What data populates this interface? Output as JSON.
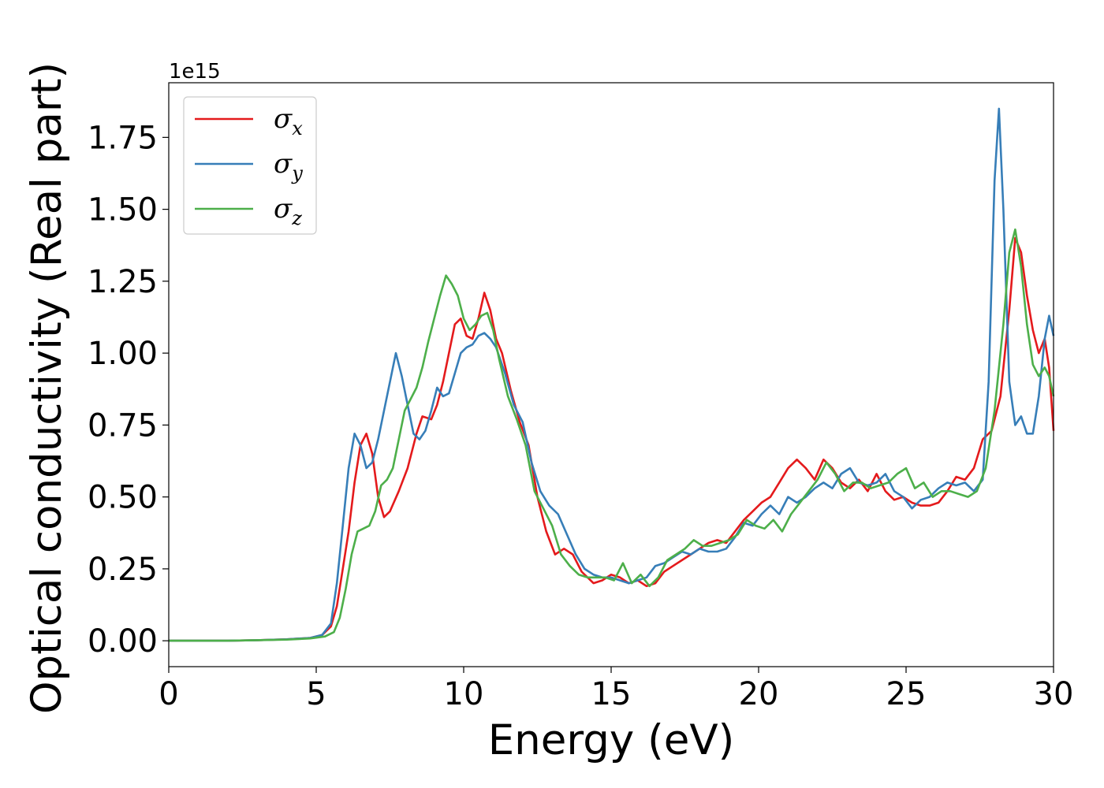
{
  "chart_data": {
    "type": "line",
    "xlabel": "Energy (eV)",
    "ylabel": "Optical conductivity (Real part)",
    "y_offset_label": "1e15",
    "xlim": [
      0,
      30
    ],
    "ylim": [
      -0.09,
      1.94
    ],
    "x_ticks": [
      0,
      5,
      10,
      15,
      20,
      25,
      30
    ],
    "x_tick_labels": [
      "0",
      "5",
      "10",
      "15",
      "20",
      "25",
      "30"
    ],
    "y_ticks": [
      0.0,
      0.25,
      0.5,
      0.75,
      1.0,
      1.25,
      1.5,
      1.75
    ],
    "y_tick_labels": [
      "0.00",
      "0.25",
      "0.50",
      "0.75",
      "1.00",
      "1.25",
      "1.50",
      "1.75"
    ],
    "grid": false,
    "legend_position": "top-left",
    "series": [
      {
        "name": "σ",
        "subscript": "x",
        "color": "#e41a1c",
        "points": [
          [
            0,
            0
          ],
          [
            2,
            0
          ],
          [
            3,
            0.002
          ],
          [
            4,
            0.005
          ],
          [
            4.8,
            0.01
          ],
          [
            5.2,
            0.02
          ],
          [
            5.5,
            0.05
          ],
          [
            5.7,
            0.12
          ],
          [
            5.9,
            0.25
          ],
          [
            6.1,
            0.38
          ],
          [
            6.3,
            0.55
          ],
          [
            6.5,
            0.68
          ],
          [
            6.7,
            0.72
          ],
          [
            6.9,
            0.65
          ],
          [
            7.1,
            0.5
          ],
          [
            7.3,
            0.43
          ],
          [
            7.5,
            0.45
          ],
          [
            7.8,
            0.52
          ],
          [
            8.1,
            0.6
          ],
          [
            8.4,
            0.72
          ],
          [
            8.6,
            0.78
          ],
          [
            8.9,
            0.77
          ],
          [
            9.1,
            0.82
          ],
          [
            9.3,
            0.9
          ],
          [
            9.5,
            1.0
          ],
          [
            9.7,
            1.1
          ],
          [
            9.9,
            1.12
          ],
          [
            10.1,
            1.06
          ],
          [
            10.3,
            1.05
          ],
          [
            10.5,
            1.12
          ],
          [
            10.7,
            1.21
          ],
          [
            10.9,
            1.15
          ],
          [
            11.1,
            1.05
          ],
          [
            11.3,
            1.0
          ],
          [
            11.6,
            0.87
          ],
          [
            11.9,
            0.76
          ],
          [
            12.2,
            0.68
          ],
          [
            12.5,
            0.5
          ],
          [
            12.8,
            0.38
          ],
          [
            13.1,
            0.3
          ],
          [
            13.4,
            0.32
          ],
          [
            13.7,
            0.3
          ],
          [
            14.0,
            0.24
          ],
          [
            14.4,
            0.2
          ],
          [
            14.7,
            0.21
          ],
          [
            15.0,
            0.23
          ],
          [
            15.3,
            0.22
          ],
          [
            15.6,
            0.2
          ],
          [
            15.9,
            0.21
          ],
          [
            16.2,
            0.19
          ],
          [
            16.5,
            0.2
          ],
          [
            16.8,
            0.24
          ],
          [
            17.1,
            0.26
          ],
          [
            17.4,
            0.28
          ],
          [
            17.7,
            0.3
          ],
          [
            18.0,
            0.32
          ],
          [
            18.3,
            0.34
          ],
          [
            18.6,
            0.35
          ],
          [
            18.9,
            0.34
          ],
          [
            19.2,
            0.38
          ],
          [
            19.5,
            0.42
          ],
          [
            19.8,
            0.45
          ],
          [
            20.1,
            0.48
          ],
          [
            20.4,
            0.5
          ],
          [
            20.7,
            0.55
          ],
          [
            21.0,
            0.6
          ],
          [
            21.3,
            0.63
          ],
          [
            21.6,
            0.6
          ],
          [
            21.9,
            0.56
          ],
          [
            22.2,
            0.63
          ],
          [
            22.5,
            0.6
          ],
          [
            22.8,
            0.55
          ],
          [
            23.1,
            0.53
          ],
          [
            23.4,
            0.56
          ],
          [
            23.7,
            0.52
          ],
          [
            24.0,
            0.58
          ],
          [
            24.3,
            0.52
          ],
          [
            24.6,
            0.49
          ],
          [
            24.9,
            0.5
          ],
          [
            25.2,
            0.48
          ],
          [
            25.5,
            0.47
          ],
          [
            25.8,
            0.47
          ],
          [
            26.1,
            0.48
          ],
          [
            26.4,
            0.52
          ],
          [
            26.7,
            0.57
          ],
          [
            27.0,
            0.56
          ],
          [
            27.3,
            0.6
          ],
          [
            27.6,
            0.7
          ],
          [
            27.9,
            0.73
          ],
          [
            28.2,
            0.85
          ],
          [
            28.5,
            1.15
          ],
          [
            28.7,
            1.4
          ],
          [
            28.9,
            1.35
          ],
          [
            29.1,
            1.2
          ],
          [
            29.3,
            1.08
          ],
          [
            29.5,
            1.0
          ],
          [
            29.7,
            1.05
          ],
          [
            29.85,
            0.95
          ],
          [
            30,
            0.73
          ]
        ]
      },
      {
        "name": "σ",
        "subscript": "y",
        "color": "#377eb8",
        "points": [
          [
            0,
            0
          ],
          [
            2,
            0
          ],
          [
            3,
            0.002
          ],
          [
            4,
            0.005
          ],
          [
            4.8,
            0.01
          ],
          [
            5.2,
            0.02
          ],
          [
            5.5,
            0.06
          ],
          [
            5.7,
            0.2
          ],
          [
            5.9,
            0.4
          ],
          [
            6.1,
            0.6
          ],
          [
            6.3,
            0.72
          ],
          [
            6.5,
            0.68
          ],
          [
            6.7,
            0.6
          ],
          [
            6.9,
            0.62
          ],
          [
            7.1,
            0.7
          ],
          [
            7.3,
            0.8
          ],
          [
            7.5,
            0.9
          ],
          [
            7.7,
            1.0
          ],
          [
            7.9,
            0.92
          ],
          [
            8.1,
            0.82
          ],
          [
            8.3,
            0.72
          ],
          [
            8.5,
            0.7
          ],
          [
            8.7,
            0.73
          ],
          [
            8.9,
            0.8
          ],
          [
            9.1,
            0.88
          ],
          [
            9.3,
            0.85
          ],
          [
            9.5,
            0.86
          ],
          [
            9.7,
            0.93
          ],
          [
            9.9,
            1.0
          ],
          [
            10.1,
            1.02
          ],
          [
            10.3,
            1.03
          ],
          [
            10.5,
            1.06
          ],
          [
            10.7,
            1.07
          ],
          [
            10.9,
            1.05
          ],
          [
            11.1,
            1.02
          ],
          [
            11.4,
            0.93
          ],
          [
            11.7,
            0.82
          ],
          [
            12.0,
            0.76
          ],
          [
            12.3,
            0.62
          ],
          [
            12.6,
            0.52
          ],
          [
            12.9,
            0.47
          ],
          [
            13.2,
            0.44
          ],
          [
            13.5,
            0.37
          ],
          [
            13.8,
            0.3
          ],
          [
            14.1,
            0.25
          ],
          [
            14.4,
            0.23
          ],
          [
            14.7,
            0.22
          ],
          [
            15.0,
            0.22
          ],
          [
            15.3,
            0.21
          ],
          [
            15.6,
            0.2
          ],
          [
            15.9,
            0.21
          ],
          [
            16.2,
            0.22
          ],
          [
            16.5,
            0.26
          ],
          [
            16.8,
            0.27
          ],
          [
            17.1,
            0.29
          ],
          [
            17.4,
            0.31
          ],
          [
            17.7,
            0.3
          ],
          [
            18.0,
            0.32
          ],
          [
            18.3,
            0.31
          ],
          [
            18.6,
            0.31
          ],
          [
            18.9,
            0.32
          ],
          [
            19.2,
            0.36
          ],
          [
            19.5,
            0.41
          ],
          [
            19.8,
            0.4
          ],
          [
            20.1,
            0.44
          ],
          [
            20.4,
            0.47
          ],
          [
            20.7,
            0.44
          ],
          [
            21.0,
            0.5
          ],
          [
            21.3,
            0.48
          ],
          [
            21.6,
            0.5
          ],
          [
            21.9,
            0.53
          ],
          [
            22.2,
            0.55
          ],
          [
            22.5,
            0.53
          ],
          [
            22.8,
            0.58
          ],
          [
            23.1,
            0.6
          ],
          [
            23.4,
            0.55
          ],
          [
            23.7,
            0.54
          ],
          [
            24.0,
            0.55
          ],
          [
            24.3,
            0.58
          ],
          [
            24.6,
            0.52
          ],
          [
            24.9,
            0.5
          ],
          [
            25.2,
            0.46
          ],
          [
            25.5,
            0.49
          ],
          [
            25.8,
            0.5
          ],
          [
            26.1,
            0.53
          ],
          [
            26.4,
            0.55
          ],
          [
            26.7,
            0.54
          ],
          [
            27.0,
            0.55
          ],
          [
            27.3,
            0.52
          ],
          [
            27.6,
            0.56
          ],
          [
            27.8,
            0.9
          ],
          [
            28.0,
            1.6
          ],
          [
            28.15,
            1.85
          ],
          [
            28.3,
            1.5
          ],
          [
            28.5,
            0.9
          ],
          [
            28.7,
            0.75
          ],
          [
            28.9,
            0.78
          ],
          [
            29.1,
            0.72
          ],
          [
            29.3,
            0.72
          ],
          [
            29.5,
            0.85
          ],
          [
            29.7,
            1.05
          ],
          [
            29.85,
            1.13
          ],
          [
            30,
            1.06
          ]
        ]
      },
      {
        "name": "σ",
        "subscript": "z",
        "color": "#4daf4a",
        "points": [
          [
            0,
            0
          ],
          [
            2,
            0
          ],
          [
            3,
            0.002
          ],
          [
            4,
            0.004
          ],
          [
            4.8,
            0.008
          ],
          [
            5.3,
            0.015
          ],
          [
            5.6,
            0.03
          ],
          [
            5.8,
            0.08
          ],
          [
            6.0,
            0.18
          ],
          [
            6.2,
            0.3
          ],
          [
            6.4,
            0.38
          ],
          [
            6.6,
            0.39
          ],
          [
            6.8,
            0.4
          ],
          [
            7.0,
            0.45
          ],
          [
            7.2,
            0.54
          ],
          [
            7.4,
            0.56
          ],
          [
            7.6,
            0.6
          ],
          [
            7.8,
            0.7
          ],
          [
            8.0,
            0.8
          ],
          [
            8.2,
            0.84
          ],
          [
            8.4,
            0.88
          ],
          [
            8.6,
            0.95
          ],
          [
            8.8,
            1.04
          ],
          [
            9.0,
            1.12
          ],
          [
            9.2,
            1.2
          ],
          [
            9.4,
            1.27
          ],
          [
            9.6,
            1.24
          ],
          [
            9.8,
            1.2
          ],
          [
            10.0,
            1.12
          ],
          [
            10.2,
            1.08
          ],
          [
            10.4,
            1.1
          ],
          [
            10.6,
            1.13
          ],
          [
            10.8,
            1.14
          ],
          [
            11.0,
            1.08
          ],
          [
            11.2,
            0.98
          ],
          [
            11.5,
            0.85
          ],
          [
            11.8,
            0.77
          ],
          [
            12.1,
            0.68
          ],
          [
            12.4,
            0.52
          ],
          [
            12.7,
            0.46
          ],
          [
            13.0,
            0.4
          ],
          [
            13.3,
            0.3
          ],
          [
            13.6,
            0.26
          ],
          [
            13.9,
            0.23
          ],
          [
            14.2,
            0.22
          ],
          [
            14.5,
            0.22
          ],
          [
            14.8,
            0.22
          ],
          [
            15.1,
            0.21
          ],
          [
            15.4,
            0.27
          ],
          [
            15.7,
            0.2
          ],
          [
            16.0,
            0.23
          ],
          [
            16.3,
            0.19
          ],
          [
            16.6,
            0.22
          ],
          [
            16.9,
            0.28
          ],
          [
            17.2,
            0.3
          ],
          [
            17.5,
            0.32
          ],
          [
            17.8,
            0.35
          ],
          [
            18.1,
            0.33
          ],
          [
            18.4,
            0.33
          ],
          [
            18.7,
            0.34
          ],
          [
            19.0,
            0.35
          ],
          [
            19.3,
            0.37
          ],
          [
            19.6,
            0.42
          ],
          [
            19.9,
            0.4
          ],
          [
            20.2,
            0.39
          ],
          [
            20.5,
            0.42
          ],
          [
            20.8,
            0.38
          ],
          [
            21.1,
            0.44
          ],
          [
            21.4,
            0.48
          ],
          [
            21.7,
            0.52
          ],
          [
            22.0,
            0.56
          ],
          [
            22.3,
            0.62
          ],
          [
            22.6,
            0.58
          ],
          [
            22.9,
            0.52
          ],
          [
            23.2,
            0.55
          ],
          [
            23.5,
            0.55
          ],
          [
            23.8,
            0.53
          ],
          [
            24.1,
            0.54
          ],
          [
            24.4,
            0.55
          ],
          [
            24.7,
            0.58
          ],
          [
            25.0,
            0.6
          ],
          [
            25.3,
            0.53
          ],
          [
            25.6,
            0.55
          ],
          [
            25.9,
            0.5
          ],
          [
            26.2,
            0.52
          ],
          [
            26.5,
            0.52
          ],
          [
            26.8,
            0.51
          ],
          [
            27.1,
            0.5
          ],
          [
            27.4,
            0.52
          ],
          [
            27.7,
            0.6
          ],
          [
            28.0,
            0.8
          ],
          [
            28.3,
            1.1
          ],
          [
            28.5,
            1.35
          ],
          [
            28.7,
            1.43
          ],
          [
            28.9,
            1.3
          ],
          [
            29.1,
            1.1
          ],
          [
            29.3,
            0.96
          ],
          [
            29.5,
            0.92
          ],
          [
            29.7,
            0.95
          ],
          [
            29.85,
            0.92
          ],
          [
            30,
            0.85
          ]
        ]
      }
    ]
  }
}
